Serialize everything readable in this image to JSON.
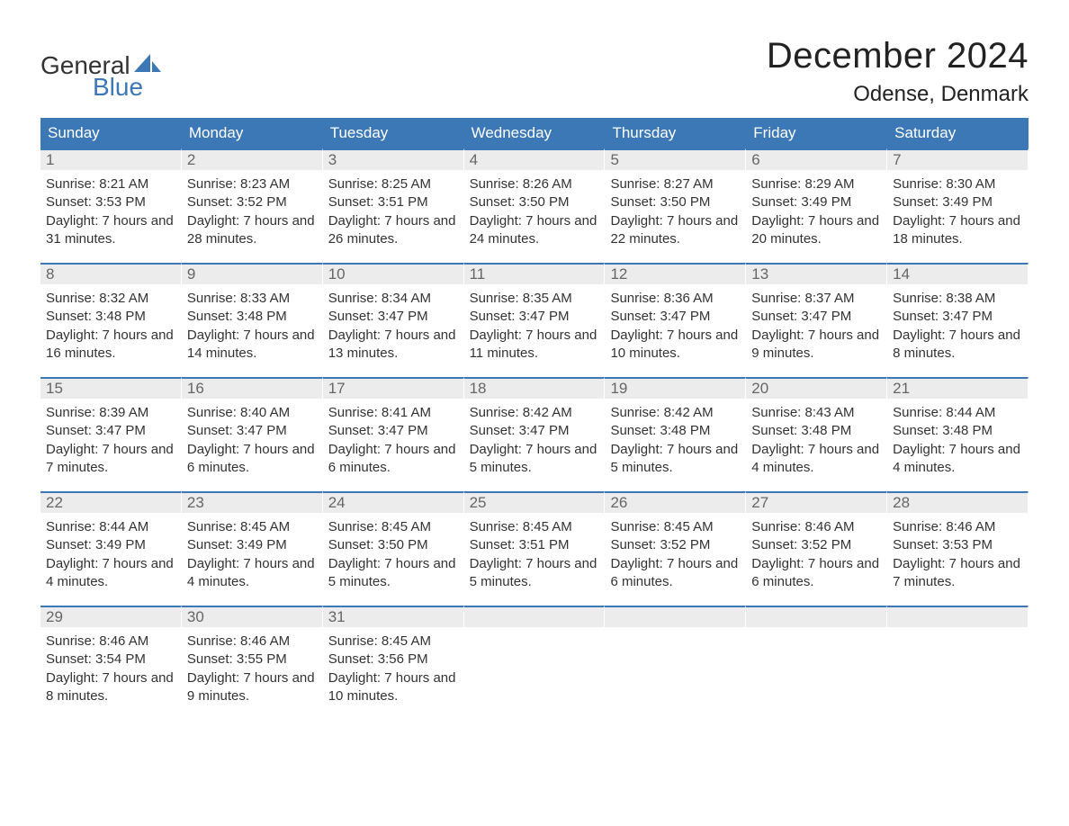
{
  "logo": {
    "top": "General",
    "bottom": "Blue",
    "text_color_top": "#333333",
    "text_color_bottom": "#3b78b5",
    "sail_color": "#3b78b5"
  },
  "title": "December 2024",
  "location": "Odense, Denmark",
  "header_bg": "#3b78b5",
  "header_text_color": "#ffffff",
  "daynum_bg": "#ececec",
  "daynum_border": "#3b78b5",
  "body_text_color": "#333333",
  "font_family": "Arial",
  "title_fontsize": 40,
  "location_fontsize": 24,
  "header_fontsize": 17,
  "content_fontsize": 15,
  "day_headers": [
    "Sunday",
    "Monday",
    "Tuesday",
    "Wednesday",
    "Thursday",
    "Friday",
    "Saturday"
  ],
  "weeks": [
    [
      {
        "day": "1",
        "sunrise": "Sunrise: 8:21 AM",
        "sunset": "Sunset: 3:53 PM",
        "daylight": "Daylight: 7 hours and 31 minutes."
      },
      {
        "day": "2",
        "sunrise": "Sunrise: 8:23 AM",
        "sunset": "Sunset: 3:52 PM",
        "daylight": "Daylight: 7 hours and 28 minutes."
      },
      {
        "day": "3",
        "sunrise": "Sunrise: 8:25 AM",
        "sunset": "Sunset: 3:51 PM",
        "daylight": "Daylight: 7 hours and 26 minutes."
      },
      {
        "day": "4",
        "sunrise": "Sunrise: 8:26 AM",
        "sunset": "Sunset: 3:50 PM",
        "daylight": "Daylight: 7 hours and 24 minutes."
      },
      {
        "day": "5",
        "sunrise": "Sunrise: 8:27 AM",
        "sunset": "Sunset: 3:50 PM",
        "daylight": "Daylight: 7 hours and 22 minutes."
      },
      {
        "day": "6",
        "sunrise": "Sunrise: 8:29 AM",
        "sunset": "Sunset: 3:49 PM",
        "daylight": "Daylight: 7 hours and 20 minutes."
      },
      {
        "day": "7",
        "sunrise": "Sunrise: 8:30 AM",
        "sunset": "Sunset: 3:49 PM",
        "daylight": "Daylight: 7 hours and 18 minutes."
      }
    ],
    [
      {
        "day": "8",
        "sunrise": "Sunrise: 8:32 AM",
        "sunset": "Sunset: 3:48 PM",
        "daylight": "Daylight: 7 hours and 16 minutes."
      },
      {
        "day": "9",
        "sunrise": "Sunrise: 8:33 AM",
        "sunset": "Sunset: 3:48 PM",
        "daylight": "Daylight: 7 hours and 14 minutes."
      },
      {
        "day": "10",
        "sunrise": "Sunrise: 8:34 AM",
        "sunset": "Sunset: 3:47 PM",
        "daylight": "Daylight: 7 hours and 13 minutes."
      },
      {
        "day": "11",
        "sunrise": "Sunrise: 8:35 AM",
        "sunset": "Sunset: 3:47 PM",
        "daylight": "Daylight: 7 hours and 11 minutes."
      },
      {
        "day": "12",
        "sunrise": "Sunrise: 8:36 AM",
        "sunset": "Sunset: 3:47 PM",
        "daylight": "Daylight: 7 hours and 10 minutes."
      },
      {
        "day": "13",
        "sunrise": "Sunrise: 8:37 AM",
        "sunset": "Sunset: 3:47 PM",
        "daylight": "Daylight: 7 hours and 9 minutes."
      },
      {
        "day": "14",
        "sunrise": "Sunrise: 8:38 AM",
        "sunset": "Sunset: 3:47 PM",
        "daylight": "Daylight: 7 hours and 8 minutes."
      }
    ],
    [
      {
        "day": "15",
        "sunrise": "Sunrise: 8:39 AM",
        "sunset": "Sunset: 3:47 PM",
        "daylight": "Daylight: 7 hours and 7 minutes."
      },
      {
        "day": "16",
        "sunrise": "Sunrise: 8:40 AM",
        "sunset": "Sunset: 3:47 PM",
        "daylight": "Daylight: 7 hours and 6 minutes."
      },
      {
        "day": "17",
        "sunrise": "Sunrise: 8:41 AM",
        "sunset": "Sunset: 3:47 PM",
        "daylight": "Daylight: 7 hours and 6 minutes."
      },
      {
        "day": "18",
        "sunrise": "Sunrise: 8:42 AM",
        "sunset": "Sunset: 3:47 PM",
        "daylight": "Daylight: 7 hours and 5 minutes."
      },
      {
        "day": "19",
        "sunrise": "Sunrise: 8:42 AM",
        "sunset": "Sunset: 3:48 PM",
        "daylight": "Daylight: 7 hours and 5 minutes."
      },
      {
        "day": "20",
        "sunrise": "Sunrise: 8:43 AM",
        "sunset": "Sunset: 3:48 PM",
        "daylight": "Daylight: 7 hours and 4 minutes."
      },
      {
        "day": "21",
        "sunrise": "Sunrise: 8:44 AM",
        "sunset": "Sunset: 3:48 PM",
        "daylight": "Daylight: 7 hours and 4 minutes."
      }
    ],
    [
      {
        "day": "22",
        "sunrise": "Sunrise: 8:44 AM",
        "sunset": "Sunset: 3:49 PM",
        "daylight": "Daylight: 7 hours and 4 minutes."
      },
      {
        "day": "23",
        "sunrise": "Sunrise: 8:45 AM",
        "sunset": "Sunset: 3:49 PM",
        "daylight": "Daylight: 7 hours and 4 minutes."
      },
      {
        "day": "24",
        "sunrise": "Sunrise: 8:45 AM",
        "sunset": "Sunset: 3:50 PM",
        "daylight": "Daylight: 7 hours and 5 minutes."
      },
      {
        "day": "25",
        "sunrise": "Sunrise: 8:45 AM",
        "sunset": "Sunset: 3:51 PM",
        "daylight": "Daylight: 7 hours and 5 minutes."
      },
      {
        "day": "26",
        "sunrise": "Sunrise: 8:45 AM",
        "sunset": "Sunset: 3:52 PM",
        "daylight": "Daylight: 7 hours and 6 minutes."
      },
      {
        "day": "27",
        "sunrise": "Sunrise: 8:46 AM",
        "sunset": "Sunset: 3:52 PM",
        "daylight": "Daylight: 7 hours and 6 minutes."
      },
      {
        "day": "28",
        "sunrise": "Sunrise: 8:46 AM",
        "sunset": "Sunset: 3:53 PM",
        "daylight": "Daylight: 7 hours and 7 minutes."
      }
    ],
    [
      {
        "day": "29",
        "sunrise": "Sunrise: 8:46 AM",
        "sunset": "Sunset: 3:54 PM",
        "daylight": "Daylight: 7 hours and 8 minutes."
      },
      {
        "day": "30",
        "sunrise": "Sunrise: 8:46 AM",
        "sunset": "Sunset: 3:55 PM",
        "daylight": "Daylight: 7 hours and 9 minutes."
      },
      {
        "day": "31",
        "sunrise": "Sunrise: 8:45 AM",
        "sunset": "Sunset: 3:56 PM",
        "daylight": "Daylight: 7 hours and 10 minutes."
      },
      {
        "day": "",
        "sunrise": "",
        "sunset": "",
        "daylight": ""
      },
      {
        "day": "",
        "sunrise": "",
        "sunset": "",
        "daylight": ""
      },
      {
        "day": "",
        "sunrise": "",
        "sunset": "",
        "daylight": ""
      },
      {
        "day": "",
        "sunrise": "",
        "sunset": "",
        "daylight": ""
      }
    ]
  ]
}
